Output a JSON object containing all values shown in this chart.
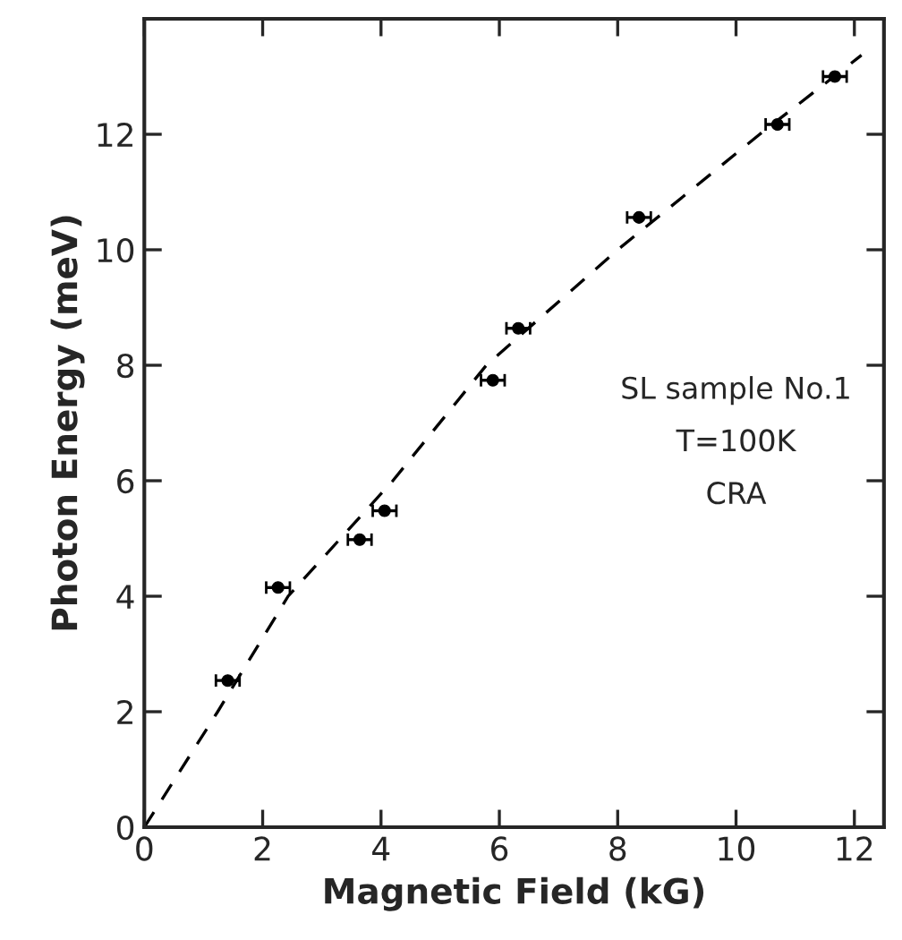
{
  "chart_data": {
    "type": "scatter",
    "xlabel": "Magnetic Field (kG)",
    "ylabel": "Photon Energy (meV)",
    "xlim": [
      0,
      12.5
    ],
    "ylim": [
      0,
      14
    ],
    "xticks": [
      0,
      2,
      4,
      6,
      8,
      10,
      12
    ],
    "yticks": [
      0,
      2,
      4,
      6,
      8,
      10,
      12
    ],
    "grid": false,
    "legend": false,
    "series": [
      {
        "color": "#000000",
        "marker": "circle",
        "x": [
          1.41,
          2.26,
          3.64,
          4.06,
          5.89,
          6.32,
          8.36,
          10.7,
          11.67
        ],
        "values": [
          2.54,
          4.15,
          4.98,
          5.48,
          7.74,
          8.64,
          10.56,
          12.17,
          13.0
        ],
        "xerrors": [
          0.2,
          0.2,
          0.2,
          0.2,
          0.2,
          0.2,
          0.2,
          0.2,
          0.2
        ]
      },
      {
        "type": "line",
        "color": "#000000",
        "line_style": "dashed",
        "marker": "none",
        "x": [
          0,
          1.24,
          2.43,
          4.2,
          5.78,
          8.0,
          10.4,
          12.12
        ],
        "values": [
          0,
          2,
          4,
          6,
          8,
          10,
          12,
          13.37
        ]
      }
    ],
    "annotations": [
      "SL sample No.1",
      "T=100K",
      "CRA"
    ]
  }
}
